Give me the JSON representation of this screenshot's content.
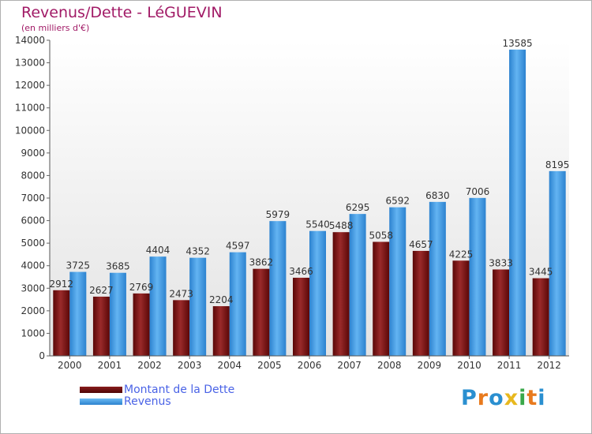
{
  "title": "Revenus/Dette - LéGUEVIN",
  "subtitle": "(en milliers d'€)",
  "logo_text": "Proxiti",
  "colors": {
    "dette": "#6b0a0a",
    "revenus": "#3f9ae0",
    "title": "#a11a66",
    "legend_text": "#4a63e6",
    "plot_bg_top": "#ffffff",
    "plot_bg_bottom": "#e3e3e3"
  },
  "legend": {
    "position": "bottom-left",
    "items": [
      {
        "label": "Montant de la Dette",
        "color": "#6b0a0a"
      },
      {
        "label": "Revenus",
        "color": "#3f9ae0"
      }
    ]
  },
  "chart_data": {
    "type": "bar",
    "title": "Revenus/Dette - LéGUEVIN",
    "subtitle": "(en milliers d'€)",
    "categories": [
      "2000",
      "2001",
      "2002",
      "2003",
      "2004",
      "2005",
      "2006",
      "2007",
      "2008",
      "2009",
      "2010",
      "2011",
      "2012"
    ],
    "series": [
      {
        "name": "Montant de la Dette",
        "values": [
          2912,
          2627,
          2769,
          2473,
          2204,
          3862,
          3466,
          5488,
          5058,
          4657,
          4225,
          3833,
          3445
        ]
      },
      {
        "name": "Revenus",
        "values": [
          3725,
          3685,
          4404,
          4352,
          4597,
          5979,
          5540,
          6295,
          6592,
          6830,
          7006,
          13585,
          8195
        ]
      }
    ],
    "value_labels": [
      [
        "2912",
        "2627",
        "2769",
        "2473",
        "2204",
        "3862",
        "3466",
        "5488",
        "5058",
        "4657",
        "4225",
        "3833",
        "3445"
      ],
      [
        "3725",
        "3685",
        "4404",
        "4352",
        "4597",
        "5979",
        "5540",
        "6295",
        "6592",
        "6830",
        "7006",
        "13585",
        "8195"
      ]
    ],
    "yticks": [
      "0",
      "1000",
      "2000",
      "3000",
      "4000",
      "5000",
      "6000",
      "7000",
      "8000",
      "9000",
      "10000",
      "11000",
      "12000",
      "13000",
      "14000"
    ],
    "ylim": [
      0,
      14000
    ],
    "xlabel": "",
    "ylabel": "",
    "grid": false
  }
}
